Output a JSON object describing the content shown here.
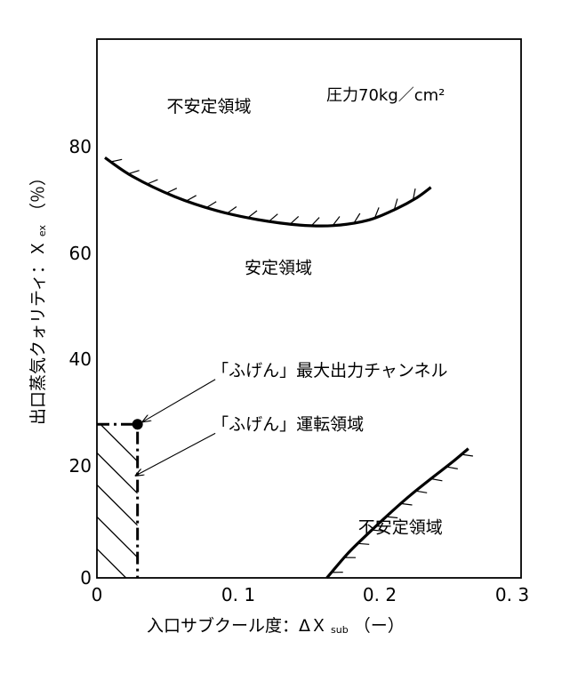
{
  "chart_data": {
    "type": "line",
    "title": "",
    "xlabel": "入口サブクール度：ΔＸ",
    "xlabel_sub": "sub",
    "xlabel_unit": "（ー）",
    "ylabel": "出口蒸気クォリティ：Ｘ",
    "ylabel_sub": "ex",
    "ylabel_unit": "（％）",
    "xlim": [
      0,
      0.3
    ],
    "ylim": [
      0,
      100
    ],
    "x_ticks": [
      0,
      0.1,
      0.2,
      0.3
    ],
    "x_tick_labels": [
      "0",
      "0. 1",
      "0. 2",
      "0. 3"
    ],
    "y_ticks": [
      0,
      20,
      40,
      60,
      80
    ],
    "y_tick_labels": [
      "0",
      "20",
      "40",
      "60",
      "80"
    ],
    "grid": false,
    "pressure_label": "圧力70kg／cm²",
    "series": [
      {
        "role": "upper-stability-boundary",
        "x": [
          0.0,
          0.02,
          0.05,
          0.08,
          0.11,
          0.14,
          0.165,
          0.19,
          0.21,
          0.225,
          0.235
        ],
        "y": [
          78,
          74.5,
          70.8,
          68.2,
          66.5,
          65.5,
          65.4,
          66.4,
          68.5,
          70.6,
          72.5
        ]
      },
      {
        "role": "lower-stability-boundary",
        "x": [
          0.16,
          0.175,
          0.19,
          0.205,
          0.22,
          0.235,
          0.25,
          0.262
        ],
        "y": [
          0,
          4.5,
          8.3,
          11.9,
          15.3,
          18.4,
          21.4,
          24
        ]
      },
      {
        "role": "operating-region",
        "x": [
          0.0,
          0.0235,
          0.0235
        ],
        "y": [
          28.5,
          28.5,
          0
        ]
      }
    ],
    "max_power_point": {
      "x": 0.0235,
      "y": 28.5
    },
    "regions": [
      {
        "label": "不安定領域",
        "x": 0.075,
        "y": 86.5
      },
      {
        "label": "安定領域",
        "x": 0.125,
        "y": 56.5
      },
      {
        "label": "不安定領域",
        "x": 0.213,
        "y": 8.3
      }
    ],
    "annotations": [
      {
        "label": "「ふげん」最大出力チャンネル",
        "x": 0.077,
        "y": 37.5
      },
      {
        "label": "「ふげん」運転領域",
        "x": 0.077,
        "y": 27.5
      }
    ]
  }
}
